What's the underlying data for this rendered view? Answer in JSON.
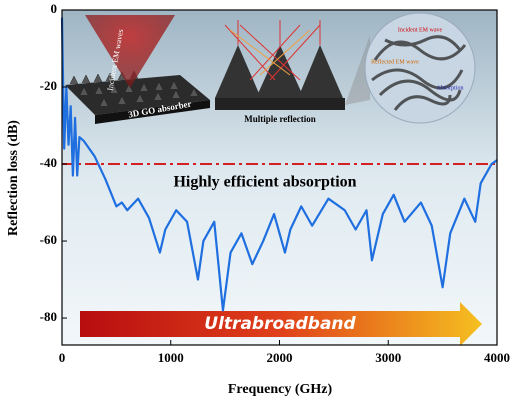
{
  "chart_data": {
    "type": "line",
    "xlabel": "Frequency (GHz)",
    "ylabel": "Reflection loss (dB)",
    "x": [
      0,
      20,
      40,
      60,
      80,
      100,
      120,
      140,
      160,
      200,
      300,
      400,
      500,
      550,
      600,
      700,
      800,
      900,
      950,
      1050,
      1150,
      1250,
      1300,
      1400,
      1480,
      1550,
      1650,
      1750,
      1850,
      1950,
      2050,
      2100,
      2200,
      2300,
      2450,
      2600,
      2700,
      2800,
      2850,
      2950,
      3050,
      3150,
      3300,
      3400,
      3500,
      3570,
      3700,
      3800,
      3850,
      3950,
      4000
    ],
    "series": [
      {
        "color": "#1f6fe0",
        "values": [
          -2,
          -36,
          -20,
          -35,
          -25,
          -43,
          -28,
          -43,
          -33,
          -34,
          -38,
          -44,
          -51,
          -50,
          -52,
          -49,
          -54,
          -63,
          -57,
          -52,
          -55,
          -70,
          -60,
          -55,
          -78,
          -63,
          -58,
          -66,
          -60,
          -53,
          -63,
          -57,
          -51,
          -56,
          -49,
          -52,
          -57,
          -52,
          -65,
          -53,
          -48,
          -55,
          -50,
          -56,
          -72,
          -58,
          -49,
          -55,
          -45,
          -40,
          -39
        ]
      }
    ],
    "threshold": {
      "value": -40,
      "color": "#d42020"
    },
    "xlim": [
      0,
      4000
    ],
    "xticks": [
      0,
      1000,
      2000,
      3000,
      4000
    ],
    "ylim": [
      -87,
      0
    ],
    "yticks": [
      0,
      -20,
      -40,
      -60,
      -80
    ],
    "annotations": [
      "Highly efficient absorption",
      "Ultrabroadband",
      "Incident EM waves",
      "3D GO absorber",
      "Multiple reflection",
      "Incident EM wave",
      "Reflected EM wave",
      "Absorption"
    ]
  }
}
